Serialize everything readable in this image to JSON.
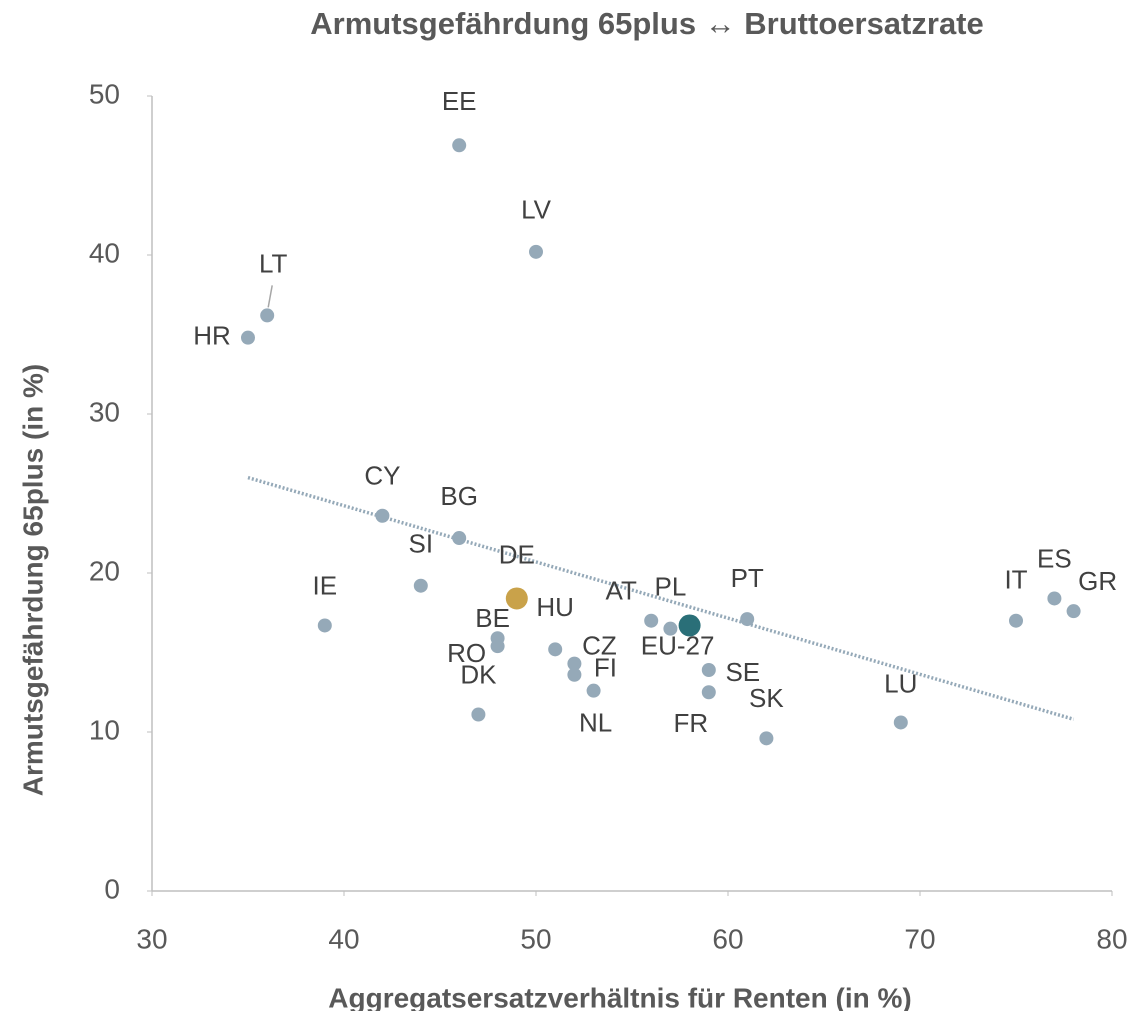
{
  "chart_data": {
    "type": "scatter",
    "title": "Armutsgefährdung 65plus ↔ Bruttoersatzrate",
    "x_label": "Aggregatsersatzverhältnis für Renten (in %)",
    "y_label": "Armutsgefährdung 65plus (in %)",
    "xlim": [
      30,
      80
    ],
    "xticks": [
      30,
      40,
      50,
      60,
      70,
      80
    ],
    "ylim": [
      0,
      50
    ],
    "yticks": [
      0,
      10,
      20,
      30,
      40,
      50
    ],
    "grid": false,
    "series": [
      {
        "labels": [
          "EE",
          "LV",
          "LT",
          "HR",
          "CY",
          "BG",
          "SI",
          "IE",
          "DE",
          "BE",
          "RO",
          "DK",
          "HU",
          "CZ",
          "FI",
          "NL",
          "AT",
          "PL",
          "EU-27",
          "PT",
          "SE",
          "FR",
          "SK",
          "LU",
          "IT",
          "ES",
          "GR"
        ],
        "x": [
          46,
          50,
          36,
          35,
          42,
          46,
          44,
          39,
          49,
          48,
          48,
          47,
          51,
          52,
          52,
          53,
          56,
          57,
          58,
          61,
          59,
          59,
          62,
          69,
          75,
          77,
          78
        ],
        "values": [
          46.9,
          40.2,
          36.2,
          34.8,
          23.6,
          22.2,
          19.2,
          16.7,
          18.4,
          15.9,
          15.4,
          11.1,
          15.2,
          14.3,
          13.6,
          12.6,
          17.0,
          16.5,
          16.7,
          17.1,
          13.9,
          12.5,
          9.6,
          10.6,
          17.0,
          18.4,
          17.6
        ],
        "colors": [
          "#95a9b8",
          "#95a9b8",
          "#95a9b8",
          "#95a9b8",
          "#95a9b8",
          "#95a9b8",
          "#95a9b8",
          "#95a9b8",
          "#c9a24a",
          "#95a9b8",
          "#95a9b8",
          "#95a9b8",
          "#95a9b8",
          "#95a9b8",
          "#95a9b8",
          "#95a9b8",
          "#95a9b8",
          "#95a9b8",
          "#2a6f78",
          "#95a9b8",
          "#95a9b8",
          "#95a9b8",
          "#95a9b8",
          "#95a9b8",
          "#95a9b8",
          "#95a9b8",
          "#95a9b8"
        ]
      }
    ],
    "trendline": {
      "color": "#95a9b8",
      "x": [
        35,
        78
      ],
      "values": [
        26.0,
        10.8
      ]
    }
  }
}
